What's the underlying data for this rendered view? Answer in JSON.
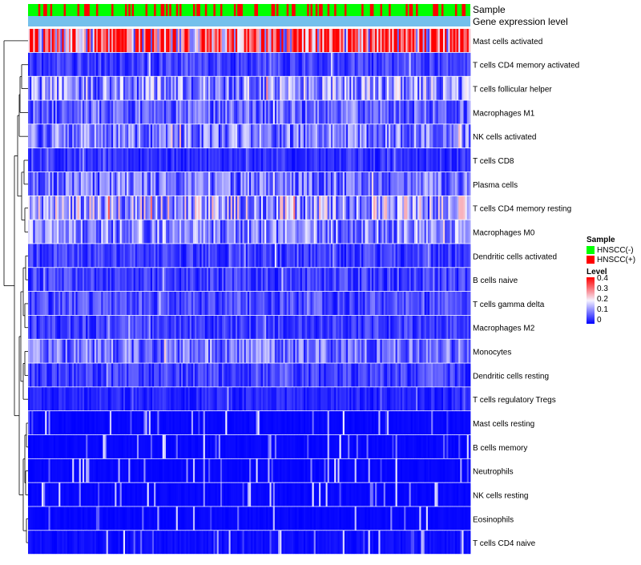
{
  "chart_data": {
    "type": "heatmap",
    "title": "",
    "annotation_tracks": [
      "Sample",
      "Gene expression level"
    ],
    "row_labels": [
      "Mast cells activated",
      "T cells CD4 memory activated",
      "T cells follicular helper",
      "Macrophages M1",
      "NK cells activated",
      "T cells CD8",
      "Plasma cells",
      "T cells CD4 memory resting",
      "Macrophages M0",
      "Dendritic cells activated",
      "B cells naive",
      "T cells gamma delta",
      "Macrophages M2",
      "Monocytes",
      "Dendritic cells resting",
      "T cells regulatory  Tregs",
      "Mast cells resting",
      "B cells memory",
      "Neutrophils",
      "NK cells resting",
      "Eosinophils",
      "T cells CD4 naive"
    ],
    "n_samples": 260,
    "approx_row_mean_level": [
      0.33,
      0.05,
      0.12,
      0.08,
      0.1,
      0.04,
      0.09,
      0.14,
      0.11,
      0.05,
      0.05,
      0.06,
      0.05,
      0.09,
      0.05,
      0.03,
      0.01,
      0.01,
      0.01,
      0.01,
      0.01,
      0.02
    ],
    "color_scale": {
      "min": 0,
      "max": 0.4,
      "stops": [
        {
          "value": 0,
          "color": "#0000ff"
        },
        {
          "value": 0.2,
          "color": "#f5f2ff"
        },
        {
          "value": 0.4,
          "color": "#ff0000"
        }
      ]
    },
    "expression_track_color": "#74c0ec",
    "legend": {
      "sample_title": "Sample",
      "sample_entries": [
        {
          "label": "HNSCC(-)",
          "color": "#00ff00"
        },
        {
          "label": "HNSCC(+)",
          "color": "#ff0000"
        }
      ],
      "level_title": "Level",
      "level_ticks": [
        "0.4",
        "0.3",
        "0.2",
        "0.1",
        "0"
      ],
      "placement": "right"
    }
  }
}
